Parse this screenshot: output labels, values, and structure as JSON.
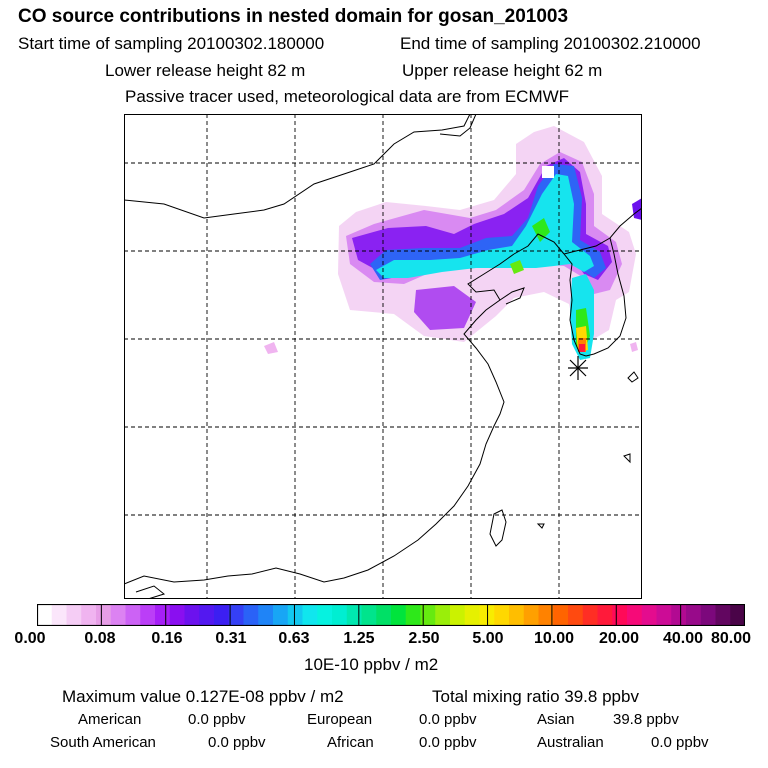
{
  "header": {
    "title": "CO  source contributions in nested domain for gosan_201003",
    "start_label": "Start time of sampling 20100302.180000",
    "end_label": "End time of sampling 20100302.210000",
    "lower_label": "Lower release height   82 m",
    "upper_label": "Upper release height   62 m",
    "note": "Passive tracer used, meteorological data are from ECMWF"
  },
  "colorbar": {
    "ticks": [
      "0.00",
      "0.08",
      "0.16",
      "0.31",
      "0.63",
      "1.25",
      "2.50",
      "5.00",
      "10.00",
      "20.00",
      "40.00",
      "80.00"
    ],
    "unit": "10E-10 ppbv / m2",
    "colors": [
      "#ffffff",
      "#fbe6fb",
      "#f5cdf5",
      "#f0b4f0",
      "#e79ee7",
      "#dc82f2",
      "#cc62f5",
      "#bb3ef7",
      "#a61ff7",
      "#8a0ff0",
      "#6c12ee",
      "#5318f0",
      "#3c1ff2",
      "#3540f5",
      "#2a62f7",
      "#1f84f7",
      "#18a6f5",
      "#13c8f0",
      "#10e6ee",
      "#06f2e0",
      "#00eed2",
      "#00e8b0",
      "#00e48c",
      "#00e066",
      "#00e43c",
      "#2ee81a",
      "#66ea10",
      "#9aee0a",
      "#cbf200",
      "#e6f000",
      "#f8ec00",
      "#ffd800",
      "#ffbe00",
      "#ffa000",
      "#ff8200",
      "#ff6400",
      "#ff4a10",
      "#ff2e24",
      "#ff1a3a",
      "#ff0a58",
      "#f60a78",
      "#e40c8e",
      "#cc0c96",
      "#b20a92",
      "#980a8a",
      "#7c087c",
      "#620660",
      "#4a0448"
    ]
  },
  "summary": {
    "maximum": "Maximum value  0.127E-08 ppbv / m2",
    "total": "Total mixing ratio       39.8 ppbv",
    "american_label": "American",
    "american_value": "0.0 ppbv",
    "european_label": "European",
    "european_value": "0.0 ppbv",
    "asian_label": "Asian",
    "asian_value": "39.8 ppbv",
    "south_american_label": "South American",
    "south_american_value": "0.0 ppbv",
    "african_label": "African",
    "african_value": "0.0 ppbv",
    "australian_label": "Australian",
    "australian_value": "0.0 ppbv"
  },
  "map": {
    "receptor": "gosan",
    "colors": {
      "coast": "#000000",
      "grid": "#000000"
    }
  }
}
